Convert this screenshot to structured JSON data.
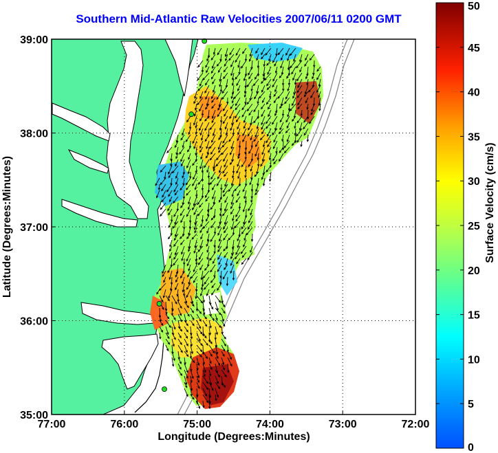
{
  "title": "Southern Mid-Atlantic Raw Velocities 2007/06/11 0200 GMT",
  "xaxis": {
    "label": "Longitude (Degrees:Minutes)",
    "ticks": [
      "77:00",
      "76:00",
      "75:00",
      "74:00",
      "73:00",
      "72:00"
    ],
    "range": [
      -77,
      -72
    ]
  },
  "yaxis": {
    "label": "Latitude (Degrees:Minutes)",
    "ticks": [
      "39:00",
      "38:00",
      "37:00",
      "36:00",
      "35:00"
    ],
    "range": [
      35,
      39
    ]
  },
  "colorbar": {
    "label": "Surface Velocity (cm/s)",
    "ticks": [
      "50",
      "45",
      "40",
      "35",
      "30",
      "25",
      "20",
      "15",
      "10",
      "5",
      "0"
    ],
    "range": [
      0,
      50
    ]
  },
  "colors": {
    "title": "#0000ff",
    "land": "#55f0a0",
    "water": "#ffffff",
    "station": "#22dd22"
  },
  "stations": [
    {
      "lon": -74.9,
      "lat": 38.98
    },
    {
      "lon": -75.08,
      "lat": 38.2
    },
    {
      "lon": -75.52,
      "lat": 36.18
    },
    {
      "lon": -75.45,
      "lat": 35.27
    }
  ]
}
